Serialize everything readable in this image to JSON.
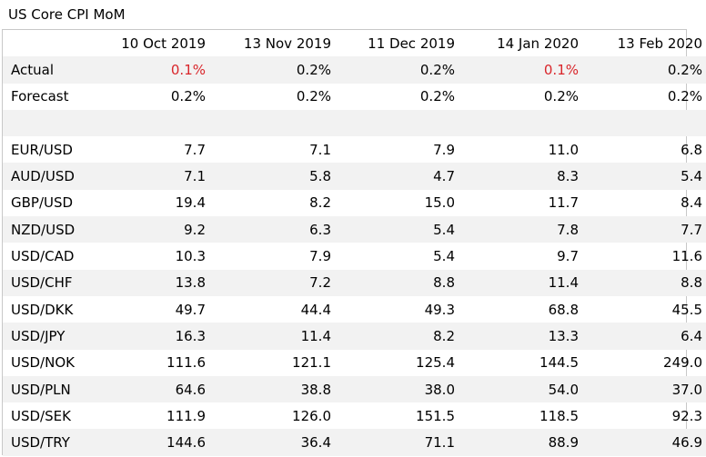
{
  "title": "US Core CPI MoM",
  "columns": [
    "10 Oct 2019",
    "13 Nov 2019",
    "11 Dec 2019",
    "14 Jan 2020",
    "13 Feb 2020"
  ],
  "colors": {
    "highlight": "#d9262b",
    "stripe": "#f2f2f2",
    "border": "#c8c8c8"
  },
  "rows": [
    {
      "label": "Actual",
      "values": [
        "0.1%",
        "0.2%",
        "0.2%",
        "0.1%",
        "0.2%"
      ],
      "red": [
        true,
        false,
        false,
        true,
        false
      ]
    },
    {
      "label": "Forecast",
      "values": [
        "0.2%",
        "0.2%",
        "0.2%",
        "0.2%",
        "0.2%"
      ]
    },
    {
      "label": "",
      "values": [
        "",
        "",
        "",
        "",
        ""
      ]
    },
    {
      "label": "EUR/USD",
      "values": [
        "7.7",
        "7.1",
        "7.9",
        "11.0",
        "6.8"
      ]
    },
    {
      "label": "AUD/USD",
      "values": [
        "7.1",
        "5.8",
        "4.7",
        "8.3",
        "5.4"
      ]
    },
    {
      "label": "GBP/USD",
      "values": [
        "19.4",
        "8.2",
        "15.0",
        "11.7",
        "8.4"
      ]
    },
    {
      "label": "NZD/USD",
      "values": [
        "9.2",
        "6.3",
        "5.4",
        "7.8",
        "7.7"
      ]
    },
    {
      "label": "USD/CAD",
      "values": [
        "10.3",
        "7.9",
        "5.4",
        "9.7",
        "11.6"
      ]
    },
    {
      "label": "USD/CHF",
      "values": [
        "13.8",
        "7.2",
        "8.8",
        "11.4",
        "8.8"
      ]
    },
    {
      "label": "USD/DKK",
      "values": [
        "49.7",
        "44.4",
        "49.3",
        "68.8",
        "45.5"
      ]
    },
    {
      "label": "USD/JPY",
      "values": [
        "16.3",
        "11.4",
        "8.2",
        "13.3",
        "6.4"
      ]
    },
    {
      "label": "USD/NOK",
      "values": [
        "111.6",
        "121.1",
        "125.4",
        "144.5",
        "249.0"
      ]
    },
    {
      "label": "USD/PLN",
      "values": [
        "64.6",
        "38.8",
        "38.0",
        "54.0",
        "37.0"
      ]
    },
    {
      "label": "USD/SEK",
      "values": [
        "111.9",
        "126.0",
        "151.5",
        "118.5",
        "92.3"
      ]
    },
    {
      "label": "USD/TRY",
      "values": [
        "144.6",
        "36.4",
        "71.1",
        "88.9",
        "46.9"
      ]
    }
  ]
}
